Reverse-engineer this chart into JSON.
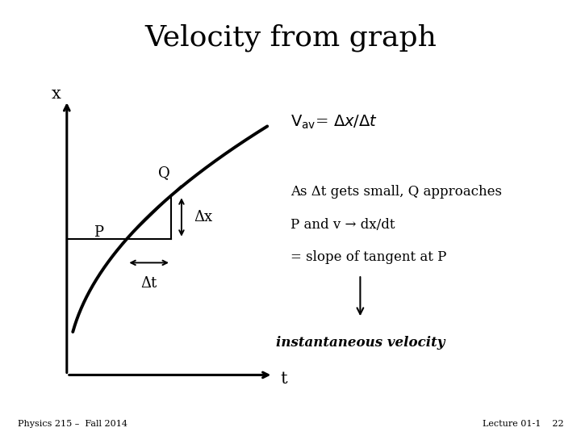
{
  "title": "Velocity from graph",
  "title_fontsize": 26,
  "bg_color": "#ffffff",
  "line_color": "#000000",
  "label_x": "x",
  "label_t": "t",
  "label_P": "P",
  "label_Q": "Q",
  "label_Dx": "Δx",
  "label_Dt": "Δt",
  "text_vav": "V",
  "text_vav_sub": "av",
  "text_vav_rest": "= Δx/Δt",
  "text_line1": "As Δt gets small, Q approaches",
  "text_line2": "P and v → dx/dt",
  "text_line3": "= slope of tangent at P",
  "text_italic": "instantaneous velocity",
  "footer_left": "Physics 215 –  Fall 2014",
  "footer_right": "Lecture 01-1    22",
  "footer_fontsize": 8,
  "gl": 0.115,
  "gr": 0.46,
  "gb": 0.14,
  "gt": 0.76,
  "P_t": 0.3,
  "Q_t": 0.52
}
